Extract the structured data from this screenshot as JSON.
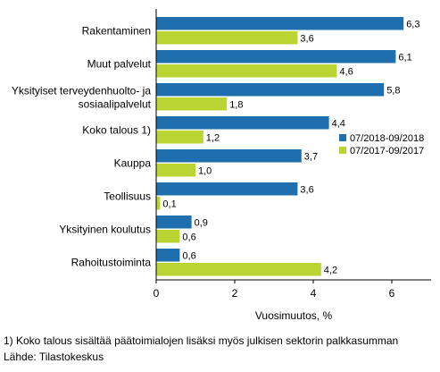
{
  "chart_data": {
    "type": "bar",
    "orientation": "horizontal",
    "categories": [
      [
        "Rakentaminen"
      ],
      [
        "Muut palvelut"
      ],
      [
        "Yksityiset terveydenhuolto- ja",
        "sosiaalipalvelut"
      ],
      [
        "Koko talous 1)"
      ],
      [
        "Kauppa"
      ],
      [
        "Teollisuus"
      ],
      [
        "Yksityinen koulutus"
      ],
      [
        "Rahoitustoiminta"
      ]
    ],
    "series": [
      {
        "name": "07/2018-09/2018",
        "color": "#1f6fae",
        "values": [
          6.3,
          6.1,
          5.8,
          4.4,
          3.7,
          3.6,
          0.9,
          0.6
        ],
        "labels": [
          "6,3",
          "6,1",
          "5,8",
          "4,4",
          "3,7",
          "3,6",
          "0,9",
          "0,6"
        ]
      },
      {
        "name": "07/2017-09/2017",
        "color": "#b9d433",
        "values": [
          3.6,
          4.6,
          1.8,
          1.2,
          1.0,
          0.1,
          0.6,
          4.2
        ],
        "labels": [
          "3,6",
          "4,6",
          "1,8",
          "1,2",
          "1,0",
          "0,1",
          "0,6",
          "4,2"
        ]
      }
    ],
    "xlabel": "Vuosimuutos, %",
    "xlim": [
      0,
      7
    ],
    "xticks": [
      0,
      2,
      4,
      6
    ],
    "grid": false,
    "legend": "right"
  },
  "footnotes": {
    "note1": "1) Koko talous sisältää päätoimialojen lisäksi myös julkisen sektorin palkkasumman",
    "source": "Lähde: Tilastokeskus"
  }
}
